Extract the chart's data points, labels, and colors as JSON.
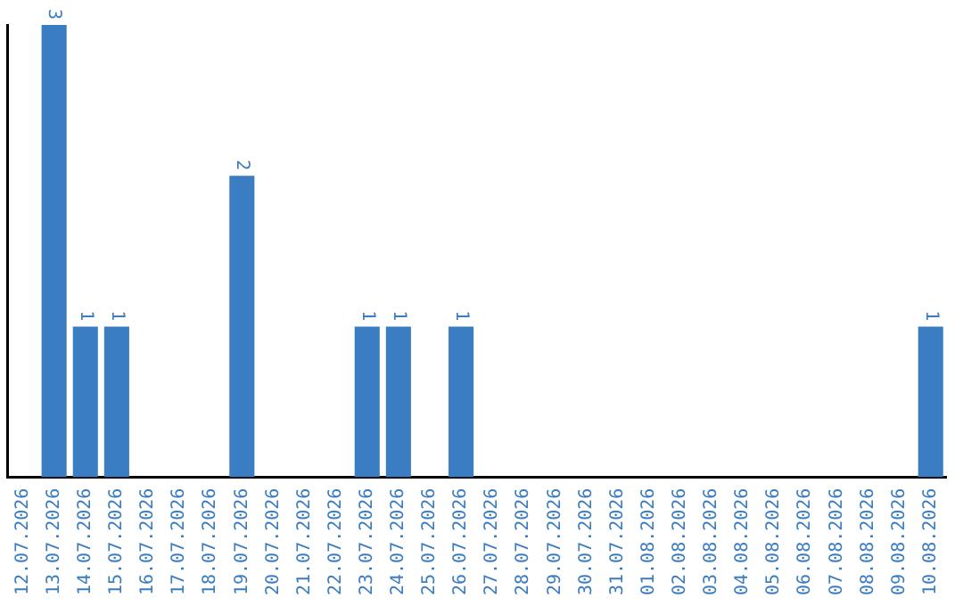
{
  "chart_data": {
    "type": "bar",
    "categories": [
      "12.07.2026",
      "13.07.2026",
      "14.07.2026",
      "15.07.2026",
      "16.07.2026",
      "17.07.2026",
      "18.07.2026",
      "19.07.2026",
      "20.07.2026",
      "21.07.2026",
      "22.07.2026",
      "23.07.2026",
      "24.07.2026",
      "25.07.2026",
      "26.07.2026",
      "27.07.2026",
      "28.07.2026",
      "29.07.2026",
      "30.07.2026",
      "31.07.2026",
      "01.08.2026",
      "02.08.2026",
      "03.08.2026",
      "04.08.2026",
      "05.08.2026",
      "06.08.2026",
      "07.08.2026",
      "08.08.2026",
      "09.08.2026",
      "10.08.2026"
    ],
    "values": [
      0,
      3,
      1,
      1,
      0,
      0,
      0,
      2,
      0,
      0,
      0,
      1,
      1,
      0,
      1,
      0,
      0,
      0,
      0,
      0,
      0,
      0,
      0,
      0,
      0,
      0,
      0,
      0,
      0,
      1
    ],
    "value_labels": [
      null,
      "3",
      "1",
      "1",
      null,
      null,
      null,
      "2",
      null,
      null,
      null,
      "1",
      "1",
      null,
      "1",
      null,
      null,
      null,
      null,
      null,
      null,
      null,
      null,
      null,
      null,
      null,
      null,
      null,
      null,
      "1"
    ],
    "color": "#3a7dc2",
    "ylim": [
      0,
      3
    ],
    "tick_labels": "x",
    "grid": false,
    "legend": false
  }
}
